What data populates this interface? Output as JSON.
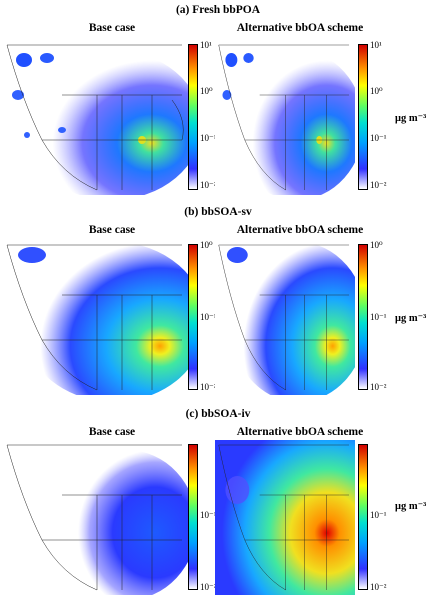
{
  "figure": {
    "sections": [
      {
        "title": "(a) Fresh bbPOA",
        "left_title": "Base case",
        "right_title": "Alternative bbOA scheme",
        "left_ticks": [
          "10¹",
          "10⁰",
          "10⁻¹",
          "10⁻²"
        ],
        "right_ticks": [
          "10¹",
          "10⁰",
          "10⁻¹",
          "10⁻²"
        ],
        "unit": "μg m⁻³"
      },
      {
        "title": "(b) bbSOA-sv",
        "left_title": "Base case",
        "right_title": "Alternative bbOA scheme",
        "left_ticks": [
          "10⁰",
          "10⁻¹",
          "10⁻²"
        ],
        "right_ticks": [
          "10⁰",
          "10⁻¹",
          "10⁻²"
        ],
        "unit": "μg m⁻³"
      },
      {
        "title": "(c) bbSOA-iv",
        "left_title": "Base case",
        "right_title": "Alternative bbOA scheme",
        "left_ticks": [
          "10⁻¹",
          "10⁻²"
        ],
        "right_ticks": [
          "10⁻¹",
          "10⁻²"
        ],
        "unit": "μg m⁻³"
      }
    ],
    "colormap": [
      "#ffffff",
      "#3030ff",
      "#00a0ff",
      "#00e0d0",
      "#60ff60",
      "#ffff00",
      "#ff9000",
      "#d00000"
    ]
  }
}
